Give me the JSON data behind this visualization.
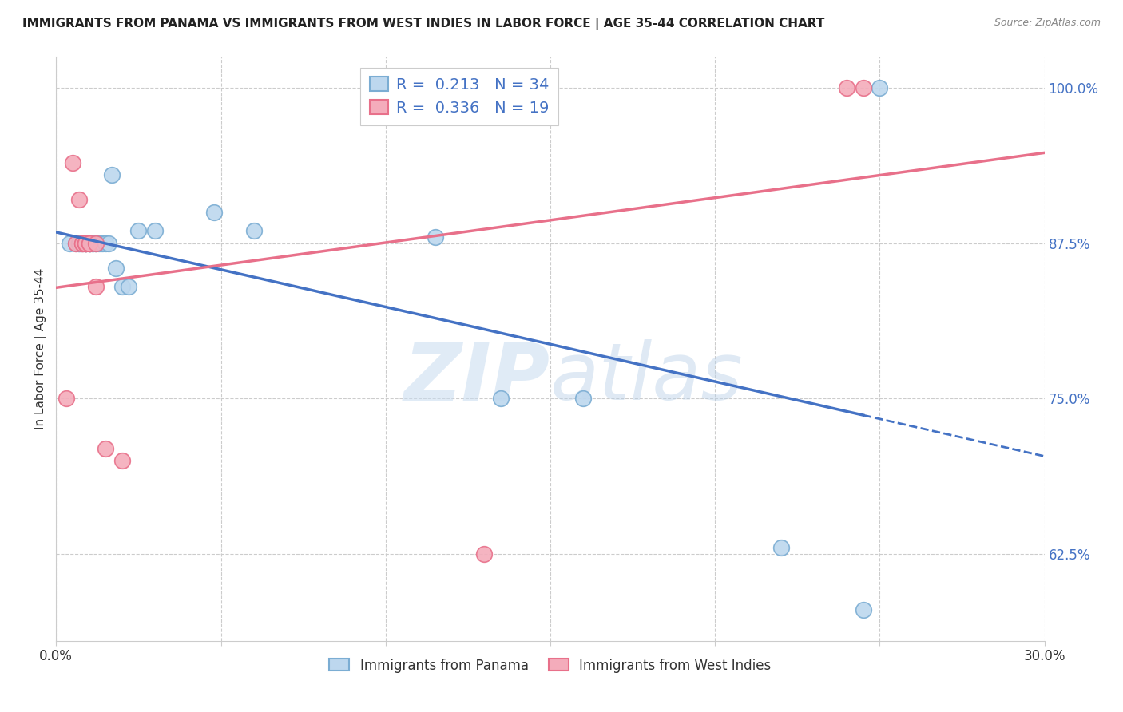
{
  "title": "IMMIGRANTS FROM PANAMA VS IMMIGRANTS FROM WEST INDIES IN LABOR FORCE | AGE 35-44 CORRELATION CHART",
  "source": "Source: ZipAtlas.com",
  "ylabel": "In Labor Force | Age 35-44",
  "xlim": [
    0.0,
    0.3
  ],
  "ylim": [
    0.555,
    1.025
  ],
  "xticks": [
    0.0,
    0.05,
    0.1,
    0.15,
    0.2,
    0.25,
    0.3
  ],
  "xticklabels": [
    "0.0%",
    "",
    "",
    "",
    "",
    "",
    "30.0%"
  ],
  "yticks_right": [
    0.625,
    0.75,
    0.875,
    1.0
  ],
  "ytick_right_labels": [
    "62.5%",
    "75.0%",
    "87.5%",
    "100.0%"
  ],
  "blue_scatter_x": [
    0.004,
    0.006,
    0.007,
    0.007,
    0.008,
    0.009,
    0.009,
    0.009,
    0.01,
    0.01,
    0.01,
    0.01,
    0.011,
    0.011,
    0.012,
    0.012,
    0.013,
    0.014,
    0.015,
    0.016,
    0.017,
    0.018,
    0.02,
    0.022,
    0.025,
    0.03,
    0.048,
    0.06,
    0.115,
    0.135,
    0.16,
    0.22,
    0.245,
    0.25
  ],
  "blue_scatter_y": [
    0.875,
    0.875,
    0.875,
    0.875,
    0.875,
    0.875,
    0.875,
    0.875,
    0.875,
    0.875,
    0.875,
    0.875,
    0.875,
    0.875,
    0.875,
    0.875,
    0.875,
    0.875,
    0.875,
    0.875,
    0.93,
    0.855,
    0.84,
    0.84,
    0.885,
    0.885,
    0.9,
    0.885,
    0.88,
    0.75,
    0.75,
    0.63,
    0.58,
    1.0
  ],
  "pink_scatter_x": [
    0.003,
    0.005,
    0.006,
    0.007,
    0.008,
    0.008,
    0.009,
    0.009,
    0.009,
    0.009,
    0.01,
    0.01,
    0.012,
    0.012,
    0.015,
    0.02,
    0.13,
    0.24,
    0.245
  ],
  "pink_scatter_y": [
    0.75,
    0.94,
    0.875,
    0.91,
    0.875,
    0.875,
    0.875,
    0.875,
    0.875,
    0.875,
    0.875,
    0.875,
    0.875,
    0.84,
    0.71,
    0.7,
    0.625,
    1.0,
    1.0
  ],
  "blue_R": 0.213,
  "blue_N": 34,
  "pink_R": 0.336,
  "pink_N": 19,
  "blue_line_color": "#4472C4",
  "pink_line_color": "#E8708A",
  "blue_scatter_facecolor": "#BDD7EE",
  "pink_scatter_facecolor": "#F4ACBB",
  "blue_scatter_edgecolor": "#7BADD3",
  "pink_scatter_edgecolor": "#E8708A",
  "watermark_zip": "ZIP",
  "watermark_atlas": "atlas",
  "bottom_legend_blue": "Immigrants from Panama",
  "bottom_legend_pink": "Immigrants from West Indies"
}
